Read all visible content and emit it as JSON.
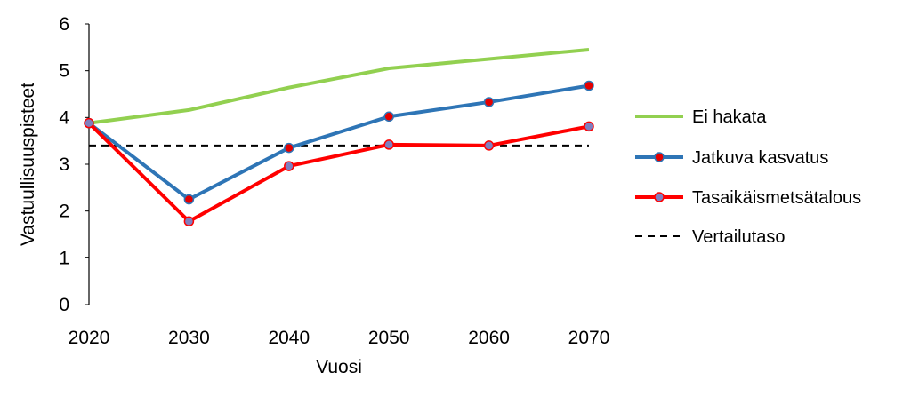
{
  "chart_data": {
    "type": "line",
    "xlabel": "Vuosi",
    "ylabel": "Vastuullisuuspisteet",
    "x": [
      2020,
      2030,
      2040,
      2050,
      2060,
      2070
    ],
    "x_tick_labels": [
      "2020",
      "2030",
      "2040",
      "2050",
      "2060",
      "2070"
    ],
    "ylim": [
      0,
      6
    ],
    "y_ticks": [
      0,
      1,
      2,
      3,
      4,
      5,
      6
    ],
    "y_tick_labels": [
      "0",
      "1",
      "2",
      "3",
      "4",
      "5",
      "6"
    ],
    "grid": false,
    "legend_position": "right",
    "series": [
      {
        "name": "Ei hakata",
        "values": [
          3.88,
          4.16,
          4.64,
          5.05,
          5.25,
          5.45
        ],
        "color": "#92d050",
        "marker": "none",
        "dashed": false
      },
      {
        "name": "Jatkuva kasvatus",
        "values": [
          3.88,
          2.25,
          3.35,
          4.02,
          4.33,
          4.68
        ],
        "color": "#2e75b6",
        "marker": "circle",
        "marker_fill": "#e60000",
        "dashed": false
      },
      {
        "name": "Tasaikäismetsätalous",
        "values": [
          3.88,
          1.78,
          2.96,
          3.42,
          3.4,
          3.81
        ],
        "color": "#ff0000",
        "marker": "circle",
        "marker_fill": "#7f7fbf",
        "dashed": false
      },
      {
        "name": "Vertailutaso",
        "values": [
          3.4,
          3.4,
          3.4,
          3.4,
          3.4,
          3.4
        ],
        "color": "#000000",
        "marker": "none",
        "dashed": true
      }
    ]
  }
}
